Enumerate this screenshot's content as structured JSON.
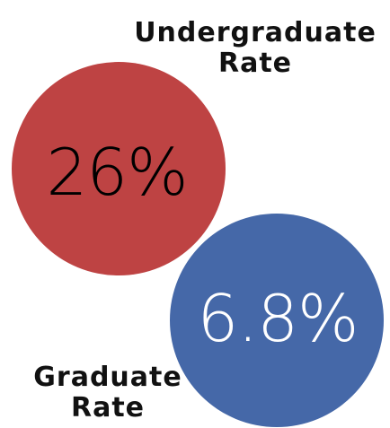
{
  "colors": {
    "undergraduate_circle": "#be4343",
    "graduate_circle": "#4568a8",
    "undergraduate_value_text": "#000000",
    "graduate_value_text": "#ffffff"
  },
  "undergraduate": {
    "label_line1": "Undergraduate",
    "label_line2": "Rate",
    "value": "26%"
  },
  "graduate": {
    "label_line1": "Graduate",
    "label_line2": "Rate",
    "value": "6.8%"
  }
}
